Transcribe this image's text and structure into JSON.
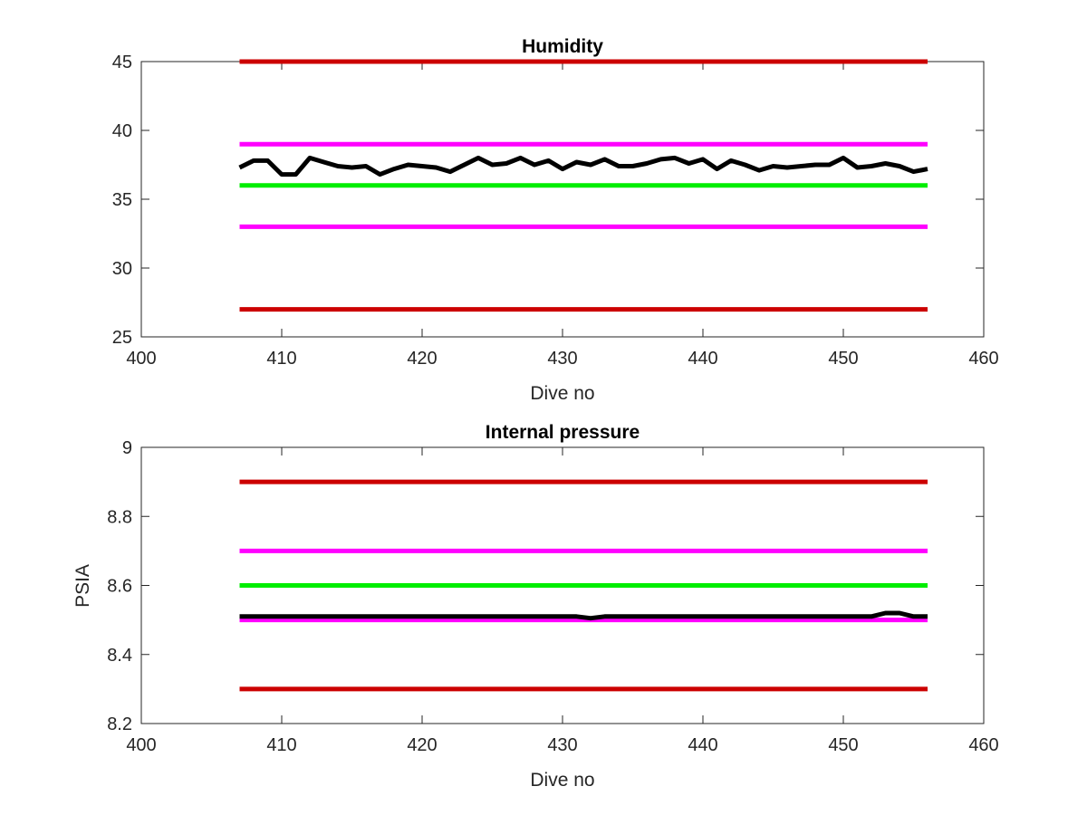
{
  "chart_data": [
    {
      "type": "line",
      "title": "Humidity",
      "xlabel": "Dive no",
      "ylabel": "",
      "xlim": [
        400,
        460
      ],
      "ylim": [
        25,
        45
      ],
      "xticks": [
        400,
        410,
        420,
        430,
        440,
        450,
        460
      ],
      "yticks": [
        25,
        30,
        35,
        40,
        45
      ],
      "grid": false,
      "series": [
        {
          "kind": "limit",
          "color": "#cc0000",
          "x": [
            407,
            456
          ],
          "y": [
            45,
            45
          ]
        },
        {
          "kind": "limit",
          "color": "#ff00ff",
          "x": [
            407,
            456
          ],
          "y": [
            39,
            39
          ]
        },
        {
          "kind": "limit",
          "color": "#00ee00",
          "x": [
            407,
            456
          ],
          "y": [
            36,
            36
          ]
        },
        {
          "kind": "limit",
          "color": "#ff00ff",
          "x": [
            407,
            456
          ],
          "y": [
            33,
            33
          ]
        },
        {
          "kind": "limit",
          "color": "#cc0000",
          "x": [
            407,
            456
          ],
          "y": [
            27,
            27
          ]
        },
        {
          "kind": "data",
          "color": "#000000",
          "x": [
            407,
            408,
            409,
            410,
            411,
            412,
            413,
            414,
            415,
            416,
            417,
            418,
            419,
            420,
            421,
            422,
            423,
            424,
            425,
            426,
            427,
            428,
            429,
            430,
            431,
            432,
            433,
            434,
            435,
            436,
            437,
            438,
            439,
            440,
            441,
            442,
            443,
            444,
            445,
            446,
            447,
            448,
            449,
            450,
            451,
            452,
            453,
            454,
            455,
            456
          ],
          "y": [
            37.3,
            37.8,
            37.8,
            36.8,
            36.8,
            38.0,
            37.7,
            37.4,
            37.3,
            37.4,
            36.8,
            37.2,
            37.5,
            37.4,
            37.3,
            37.0,
            37.5,
            38.0,
            37.5,
            37.6,
            38.0,
            37.5,
            37.8,
            37.2,
            37.7,
            37.5,
            37.9,
            37.4,
            37.4,
            37.6,
            37.9,
            38.0,
            37.6,
            37.9,
            37.2,
            37.8,
            37.5,
            37.1,
            37.4,
            37.3,
            37.4,
            37.5,
            37.5,
            38.0,
            37.3,
            37.4,
            37.6,
            37.4,
            37.0,
            37.2
          ]
        }
      ]
    },
    {
      "type": "line",
      "title": "Internal pressure",
      "xlabel": "Dive no",
      "ylabel": "PSIA",
      "xlim": [
        400,
        460
      ],
      "ylim": [
        8.2,
        9
      ],
      "xticks": [
        400,
        410,
        420,
        430,
        440,
        450,
        460
      ],
      "yticks": [
        8.2,
        8.4,
        8.6,
        8.8,
        9
      ],
      "grid": false,
      "series": [
        {
          "kind": "limit",
          "color": "#cc0000",
          "x": [
            407,
            456
          ],
          "y": [
            8.9,
            8.9
          ]
        },
        {
          "kind": "limit",
          "color": "#ff00ff",
          "x": [
            407,
            456
          ],
          "y": [
            8.7,
            8.7
          ]
        },
        {
          "kind": "limit",
          "color": "#00ee00",
          "x": [
            407,
            456
          ],
          "y": [
            8.6,
            8.6
          ]
        },
        {
          "kind": "limit",
          "color": "#ff00ff",
          "x": [
            407,
            456
          ],
          "y": [
            8.5,
            8.5
          ]
        },
        {
          "kind": "limit",
          "color": "#cc0000",
          "x": [
            407,
            456
          ],
          "y": [
            8.3,
            8.3
          ]
        },
        {
          "kind": "data",
          "color": "#000000",
          "x": [
            407,
            408,
            409,
            410,
            411,
            412,
            413,
            414,
            415,
            416,
            417,
            418,
            419,
            420,
            421,
            422,
            423,
            424,
            425,
            426,
            427,
            428,
            429,
            430,
            431,
            432,
            433,
            434,
            435,
            436,
            437,
            438,
            439,
            440,
            441,
            442,
            443,
            444,
            445,
            446,
            447,
            448,
            449,
            450,
            451,
            452,
            453,
            454,
            455,
            456
          ],
          "y": [
            8.51,
            8.51,
            8.51,
            8.51,
            8.51,
            8.51,
            8.51,
            8.51,
            8.51,
            8.51,
            8.51,
            8.51,
            8.51,
            8.51,
            8.51,
            8.51,
            8.51,
            8.51,
            8.51,
            8.51,
            8.51,
            8.51,
            8.51,
            8.51,
            8.51,
            8.505,
            8.51,
            8.51,
            8.51,
            8.51,
            8.51,
            8.51,
            8.51,
            8.51,
            8.51,
            8.51,
            8.51,
            8.51,
            8.51,
            8.51,
            8.51,
            8.51,
            8.51,
            8.51,
            8.51,
            8.51,
            8.52,
            8.52,
            8.51,
            8.51
          ]
        }
      ]
    }
  ]
}
